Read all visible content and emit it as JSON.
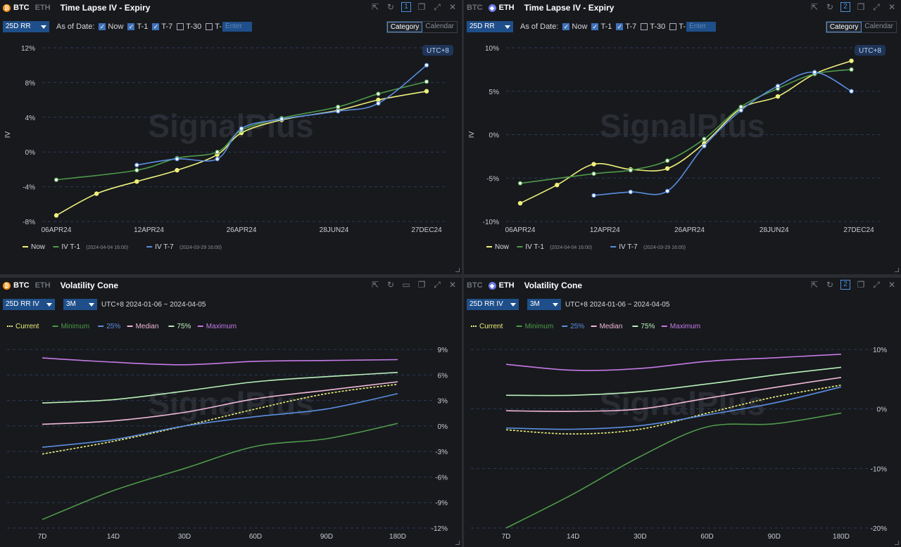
{
  "panels": [
    {
      "id": "p1",
      "coins": [
        "BTC",
        "ETH"
      ],
      "active_coin": "BTC",
      "title": "Time Lapse IV - Expiry",
      "badge": "1",
      "selector": "25D RR",
      "as_of_label": "As of Date:",
      "checks": [
        {
          "label": "Now",
          "on": true
        },
        {
          "label": "T-1",
          "on": true
        },
        {
          "label": "T-7",
          "on": true
        },
        {
          "label": "T-30",
          "on": false
        },
        {
          "label": "T-",
          "on": false
        }
      ],
      "enter_placeholder": "Enter",
      "toggle": [
        "Category",
        "Calendar"
      ],
      "utc_tag": "UTC+8",
      "watermark": "SignalPlus"
    },
    {
      "id": "p2",
      "coins": [
        "BTC",
        "ETH"
      ],
      "active_coin": "ETH",
      "title": "Time Lapse IV - Expiry",
      "badge": "2",
      "selector": "25D RR",
      "as_of_label": "As of Date:",
      "checks": [
        {
          "label": "Now",
          "on": true
        },
        {
          "label": "T-1",
          "on": true
        },
        {
          "label": "T-7",
          "on": true
        },
        {
          "label": "T-30",
          "on": false
        },
        {
          "label": "T-",
          "on": false
        }
      ],
      "enter_placeholder": "Enter",
      "toggle": [
        "Category",
        "Calendar"
      ],
      "utc_tag": "UTC+8",
      "watermark": "SignalPlus"
    },
    {
      "id": "p3",
      "coins": [
        "BTC",
        "ETH"
      ],
      "active_coin": "BTC",
      "title": "Volatility Cone",
      "badge": "",
      "selector": "25D RR IV",
      "period": "3M",
      "range": "UTC+8 2024-01-06 ~ 2024-04-05",
      "watermark": "SignalPlus"
    },
    {
      "id": "p4",
      "coins": [
        "BTC",
        "ETH"
      ],
      "active_coin": "ETH",
      "title": "Volatility Cone",
      "badge": "2",
      "selector": "25D RR IV",
      "period": "3M",
      "range": "UTC+8 2024-01-06 ~ 2024-04-05",
      "watermark": "SignalPlus"
    }
  ],
  "colors": {
    "now": "#eef07a",
    "t1": "#4f9a4a",
    "t7": "#5b8ee0",
    "current": "#eef07a",
    "minimum": "#4f9a4a",
    "p25": "#5b8ee0",
    "median": "#f0b8d8",
    "p75": "#b8f0b8",
    "maximum": "#c67ae6"
  },
  "chart_data": [
    {
      "type": "line",
      "ylabel": "IV",
      "y_ticks": [
        "12%",
        "8%",
        "4%",
        "0%",
        "-4%",
        "-8%"
      ],
      "ylim": [
        -8,
        12
      ],
      "x_ticks": [
        "06APR24",
        "12APR24",
        "26APR24",
        "28JUN24",
        "27DEC24"
      ],
      "x_positions": [
        0,
        1,
        2,
        3,
        4,
        5,
        6,
        7,
        8,
        9
      ],
      "legend": [
        {
          "key": "now",
          "label": "Now",
          "sub": ""
        },
        {
          "key": "t1",
          "label": "IV T-1",
          "sub": "(2024-04-04 16:00)"
        },
        {
          "key": "t7",
          "label": "IV T-7",
          "sub": "(2024-03-29 16:00)"
        }
      ],
      "series": [
        {
          "key": "now",
          "points": [
            [
              0,
              -7.3
            ],
            [
              0.5,
              -4.8
            ],
            [
              1.0,
              -3.4
            ],
            [
              1.5,
              -2.1
            ],
            [
              2.0,
              -0.3
            ],
            [
              2.3,
              2.2
            ],
            [
              2.8,
              3.7
            ],
            [
              3.5,
              4.8
            ],
            [
              4.0,
              6.0
            ],
            [
              4.6,
              7.0
            ]
          ]
        },
        {
          "key": "t1",
          "points": [
            [
              0,
              -3.2
            ],
            [
              1.0,
              -2.1
            ],
            [
              1.5,
              -0.7
            ],
            [
              2.0,
              0.0
            ],
            [
              2.3,
              2.5
            ],
            [
              2.8,
              3.9
            ],
            [
              3.5,
              5.2
            ],
            [
              4.0,
              6.7
            ],
            [
              4.6,
              8.1
            ]
          ]
        },
        {
          "key": "t7",
          "points": [
            [
              1.0,
              -1.5
            ],
            [
              1.5,
              -0.8
            ],
            [
              2.0,
              -0.8
            ],
            [
              2.3,
              2.7
            ],
            [
              2.8,
              3.8
            ],
            [
              3.5,
              4.7
            ],
            [
              4.0,
              5.6
            ],
            [
              4.6,
              10.0
            ]
          ]
        }
      ]
    },
    {
      "type": "line",
      "ylabel": "IV",
      "y_ticks": [
        "10%",
        "5%",
        "0%",
        "-5%",
        "-10%"
      ],
      "ylim": [
        -10,
        10
      ],
      "x_ticks": [
        "06APR24",
        "12APR24",
        "26APR24",
        "28JUN24",
        "27DEC24"
      ],
      "legend": [
        {
          "key": "now",
          "label": "Now",
          "sub": ""
        },
        {
          "key": "t1",
          "label": "IV T-1",
          "sub": "(2024-04-04 16:00)"
        },
        {
          "key": "t7",
          "label": "IV T-7",
          "sub": "(2024-03-29 16:00)"
        }
      ],
      "series": [
        {
          "key": "now",
          "points": [
            [
              0,
              -7.9
            ],
            [
              0.5,
              -5.8
            ],
            [
              1.0,
              -3.4
            ],
            [
              1.5,
              -4.0
            ],
            [
              2.0,
              -3.9
            ],
            [
              2.5,
              -1.0
            ],
            [
              3.0,
              3.0
            ],
            [
              3.5,
              4.4
            ],
            [
              4.0,
              7.0
            ],
            [
              4.5,
              8.5
            ]
          ]
        },
        {
          "key": "t1",
          "points": [
            [
              0,
              -5.6
            ],
            [
              1.0,
              -4.5
            ],
            [
              1.5,
              -4.1
            ],
            [
              2.0,
              -3.0
            ],
            [
              2.5,
              -0.5
            ],
            [
              3.0,
              3.2
            ],
            [
              3.5,
              5.3
            ],
            [
              4.0,
              7.0
            ],
            [
              4.5,
              7.5
            ]
          ]
        },
        {
          "key": "t7",
          "points": [
            [
              1.0,
              -7.0
            ],
            [
              1.5,
              -6.6
            ],
            [
              2.0,
              -6.5
            ],
            [
              2.5,
              -1.3
            ],
            [
              3.0,
              2.8
            ],
            [
              3.5,
              5.6
            ],
            [
              4.0,
              7.2
            ],
            [
              4.5,
              5.0
            ]
          ]
        }
      ]
    },
    {
      "type": "line",
      "y_ticks": [
        "9%",
        "6%",
        "3%",
        "0%",
        "-3%",
        "-6%",
        "-9%",
        "-12%"
      ],
      "ylim": [
        -12,
        9
      ],
      "x_ticks": [
        "7D",
        "14D",
        "30D",
        "60D",
        "90D",
        "180D"
      ],
      "legend": [
        {
          "key": "current",
          "label": "Current",
          "dashed": true
        },
        {
          "key": "minimum",
          "label": "Minimum"
        },
        {
          "key": "p25",
          "label": "25%"
        },
        {
          "key": "median",
          "label": "Median"
        },
        {
          "key": "p75",
          "label": "75%"
        },
        {
          "key": "maximum",
          "label": "Maximum"
        }
      ],
      "series": [
        {
          "key": "maximum",
          "values": [
            8.0,
            7.5,
            7.2,
            7.6,
            7.7,
            7.8
          ]
        },
        {
          "key": "p75",
          "values": [
            2.7,
            3.1,
            4.1,
            5.2,
            5.8,
            6.3
          ]
        },
        {
          "key": "median",
          "values": [
            0.2,
            0.6,
            1.6,
            3.2,
            4.2,
            5.2
          ]
        },
        {
          "key": "current",
          "values": [
            -3.3,
            -1.8,
            0.0,
            2.0,
            3.8,
            4.9
          ]
        },
        {
          "key": "p25",
          "values": [
            -2.5,
            -1.6,
            0.0,
            1.1,
            2.0,
            3.8
          ]
        },
        {
          "key": "minimum",
          "values": [
            -11.0,
            -7.6,
            -5.0,
            -2.4,
            -1.5,
            0.3
          ]
        }
      ]
    },
    {
      "type": "line",
      "y_ticks": [
        "10%",
        "0%",
        "-10%",
        "-20%"
      ],
      "ylim": [
        -20,
        10
      ],
      "x_ticks": [
        "7D",
        "14D",
        "30D",
        "60D",
        "90D",
        "180D"
      ],
      "legend": [
        {
          "key": "current",
          "label": "Current",
          "dashed": true
        },
        {
          "key": "minimum",
          "label": "Minimum"
        },
        {
          "key": "p25",
          "label": "25%"
        },
        {
          "key": "median",
          "label": "Median"
        },
        {
          "key": "p75",
          "label": "75%"
        },
        {
          "key": "maximum",
          "label": "Maximum"
        }
      ],
      "series": [
        {
          "key": "maximum",
          "values": [
            7.5,
            6.5,
            6.8,
            8.0,
            8.6,
            9.2
          ]
        },
        {
          "key": "p75",
          "values": [
            2.3,
            2.3,
            2.9,
            4.2,
            5.7,
            7.0
          ]
        },
        {
          "key": "median",
          "values": [
            -0.3,
            -0.4,
            0.0,
            1.8,
            3.6,
            5.3
          ]
        },
        {
          "key": "current",
          "values": [
            -3.5,
            -4.2,
            -3.4,
            -0.7,
            2.0,
            4.0
          ]
        },
        {
          "key": "p25",
          "values": [
            -3.2,
            -3.4,
            -2.8,
            -1.0,
            1.0,
            3.7
          ]
        },
        {
          "key": "minimum",
          "values": [
            -20.0,
            -14.3,
            -8.0,
            -3.0,
            -2.5,
            -0.7
          ]
        }
      ]
    }
  ]
}
